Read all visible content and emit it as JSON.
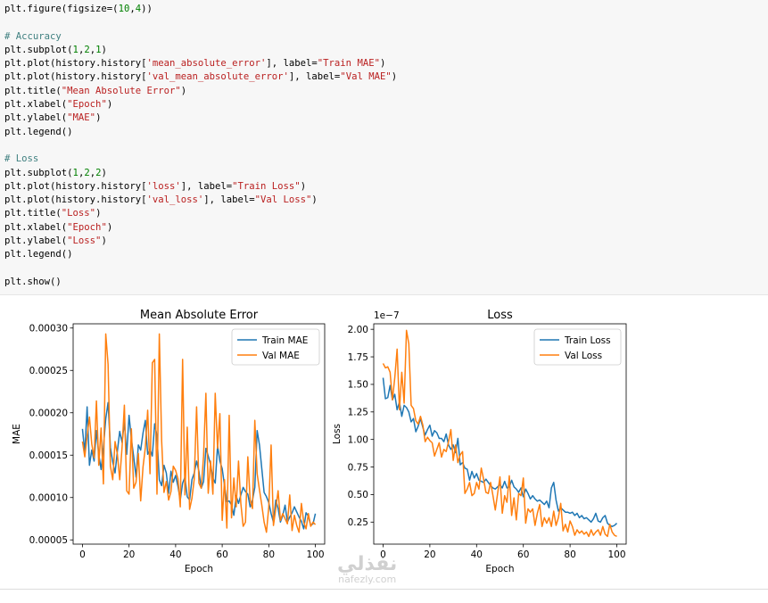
{
  "code_lines": [
    {
      "parts": [
        {
          "t": "plt.figure(figsize=(",
          "c": "kw"
        },
        {
          "t": "10",
          "c": "num"
        },
        {
          "t": ",",
          "c": "kw"
        },
        {
          "t": "4",
          "c": "num"
        },
        {
          "t": "))",
          "c": "kw"
        }
      ]
    },
    {
      "parts": []
    },
    {
      "parts": [
        {
          "t": "# Accuracy",
          "c": "com"
        }
      ]
    },
    {
      "parts": [
        {
          "t": "plt.subplot(",
          "c": "kw"
        },
        {
          "t": "1",
          "c": "num"
        },
        {
          "t": ",",
          "c": "kw"
        },
        {
          "t": "2",
          "c": "num"
        },
        {
          "t": ",",
          "c": "kw"
        },
        {
          "t": "1",
          "c": "num"
        },
        {
          "t": ")",
          "c": "kw"
        }
      ]
    },
    {
      "parts": [
        {
          "t": "plt.plot(history.history[",
          "c": "kw"
        },
        {
          "t": "'mean_absolute_error'",
          "c": "str"
        },
        {
          "t": "], label=",
          "c": "kw"
        },
        {
          "t": "\"Train MAE\"",
          "c": "str"
        },
        {
          "t": ")",
          "c": "kw"
        }
      ]
    },
    {
      "parts": [
        {
          "t": "plt.plot(history.history[",
          "c": "kw"
        },
        {
          "t": "'val_mean_absolute_error'",
          "c": "str"
        },
        {
          "t": "], label=",
          "c": "kw"
        },
        {
          "t": "\"Val MAE\"",
          "c": "str"
        },
        {
          "t": ")",
          "c": "kw"
        }
      ]
    },
    {
      "parts": [
        {
          "t": "plt.title(",
          "c": "kw"
        },
        {
          "t": "\"Mean Absolute Error\"",
          "c": "str"
        },
        {
          "t": ")",
          "c": "kw"
        }
      ]
    },
    {
      "parts": [
        {
          "t": "plt.xlabel(",
          "c": "kw"
        },
        {
          "t": "\"Epoch\"",
          "c": "str"
        },
        {
          "t": ")",
          "c": "kw"
        }
      ]
    },
    {
      "parts": [
        {
          "t": "plt.ylabel(",
          "c": "kw"
        },
        {
          "t": "\"MAE\"",
          "c": "str"
        },
        {
          "t": ")",
          "c": "kw"
        }
      ]
    },
    {
      "parts": [
        {
          "t": "plt.legend()",
          "c": "kw"
        }
      ]
    },
    {
      "parts": []
    },
    {
      "parts": [
        {
          "t": "# Loss",
          "c": "com"
        }
      ]
    },
    {
      "parts": [
        {
          "t": "plt.subplot(",
          "c": "kw"
        },
        {
          "t": "1",
          "c": "num"
        },
        {
          "t": ",",
          "c": "kw"
        },
        {
          "t": "2",
          "c": "num"
        },
        {
          "t": ",",
          "c": "kw"
        },
        {
          "t": "2",
          "c": "num"
        },
        {
          "t": ")",
          "c": "kw"
        }
      ]
    },
    {
      "parts": [
        {
          "t": "plt.plot(history.history[",
          "c": "kw"
        },
        {
          "t": "'loss'",
          "c": "str"
        },
        {
          "t": "], label=",
          "c": "kw"
        },
        {
          "t": "\"Train Loss\"",
          "c": "str"
        },
        {
          "t": ")",
          "c": "kw"
        }
      ]
    },
    {
      "parts": [
        {
          "t": "plt.plot(history.history[",
          "c": "kw"
        },
        {
          "t": "'val_loss'",
          "c": "str"
        },
        {
          "t": "], label=",
          "c": "kw"
        },
        {
          "t": "\"Val Loss\"",
          "c": "str"
        },
        {
          "t": ")",
          "c": "kw"
        }
      ]
    },
    {
      "parts": [
        {
          "t": "plt.title(",
          "c": "kw"
        },
        {
          "t": "\"Loss\"",
          "c": "str"
        },
        {
          "t": ")",
          "c": "kw"
        }
      ]
    },
    {
      "parts": [
        {
          "t": "plt.xlabel(",
          "c": "kw"
        },
        {
          "t": "\"Epoch\"",
          "c": "str"
        },
        {
          "t": ")",
          "c": "kw"
        }
      ]
    },
    {
      "parts": [
        {
          "t": "plt.ylabel(",
          "c": "kw"
        },
        {
          "t": "\"Loss\"",
          "c": "str"
        },
        {
          "t": ")",
          "c": "kw"
        }
      ]
    },
    {
      "parts": [
        {
          "t": "plt.legend()",
          "c": "kw"
        }
      ]
    },
    {
      "parts": []
    },
    {
      "parts": [
        {
          "t": "plt.show()",
          "c": "kw"
        }
      ]
    }
  ],
  "colors": {
    "train": "#1f77b4",
    "val": "#ff7f0e"
  },
  "watermark": {
    "arabic": "نفذلي",
    "latin": "nafezly.com"
  },
  "chart_data": [
    {
      "type": "line",
      "title": "Mean Absolute Error",
      "xlabel": "Epoch",
      "ylabel": "MAE",
      "xlim": [
        -4,
        104
      ],
      "ylim": [
        4.5e-05,
        0.000305
      ],
      "xticks": [
        0,
        20,
        40,
        60,
        80,
        100
      ],
      "yticks": [
        5e-05,
        0.0001,
        0.00015,
        0.0002,
        0.00025,
        0.0003
      ],
      "ytick_labels": [
        "0.00005",
        "0.00010",
        "0.00015",
        "0.00020",
        "0.00025",
        "0.00030"
      ],
      "legend": "top-right",
      "series": [
        {
          "name": "Train MAE",
          "color": "#1f77b4",
          "values": [
            0.000181,
            0.000153,
            0.000207,
            0.000138,
            0.000156,
            0.000143,
            0.000179,
            0.000151,
            0.000133,
            0.000159,
            0.000193,
            0.000212,
            0.000159,
            0.000142,
            0.000129,
            0.000155,
            0.000178,
            0.000165,
            0.000189,
            0.000151,
            0.000197,
            0.000169,
            0.000148,
            0.000124,
            0.000162,
            0.000156,
            0.000176,
            0.000191,
            0.000151,
            0.000157,
            0.000149,
            0.000187,
            0.000173,
            0.000121,
            0.000114,
            0.000138,
            0.000129,
            0.000105,
            0.000131,
            0.000118,
            0.000126,
            0.000113,
            9.7e-05,
            0.000117,
            0.000124,
            0.000101,
            9.7e-05,
            0.000121,
            0.000129,
            0.000143,
            0.000131,
            0.000111,
            0.000119,
            0.000158,
            0.000149,
            0.000139,
            0.000123,
            0.000117,
            0.000161,
            0.000143,
            0.000134,
            0.000114,
            9.5e-05,
            9.6e-05,
            9.1e-05,
            7.9e-05,
            0.000102,
            9.3e-05,
            0.000103,
            0.000112,
            0.000107,
            0.000104,
            8.9e-05,
            9.7e-05,
            0.000112,
            0.000179,
            0.000162,
            0.000134,
            0.000106,
            0.000101,
            9.4e-05,
            8.1e-05,
            7.1e-05,
            9.7e-05,
            8.7e-05,
            7.1e-05,
            7.9e-05,
            9.1e-05,
            7.1e-05,
            7.7e-05,
            8.2e-05,
            8.9e-05,
            8.3e-05,
            7.7e-05,
            7.2e-05,
            6.3e-05,
            8.2e-05,
            7.8e-05,
            6.7e-05,
            6.9e-05,
            8.1e-05
          ]
        },
        {
          "name": "Val MAE",
          "color": "#ff7f0e",
          "values": [
            0.000166,
            0.000148,
            0.000173,
            0.000195,
            0.000163,
            0.000147,
            0.000214,
            0.000138,
            0.000182,
            0.000116,
            0.000293,
            0.000257,
            0.000137,
            0.000121,
            0.000166,
            0.000151,
            0.000121,
            0.000159,
            0.000209,
            0.000108,
            0.000104,
            0.000181,
            0.000111,
            0.000118,
            0.000152,
            9.6e-05,
            0.000136,
            0.000159,
            0.000203,
            0.000128,
            0.000259,
            0.000263,
            0.000104,
            0.000293,
            0.000167,
            0.000106,
            0.000119,
            9.7e-05,
            0.000107,
            0.000137,
            0.000132,
            0.000122,
            8.9e-05,
            0.000263,
            0.000103,
            0.000183,
            8.6e-05,
            9.9e-05,
            0.000122,
            0.000207,
            0.000117,
            0.000111,
            0.000149,
            0.000223,
            0.000105,
            0.000143,
            0.000104,
            0.000223,
            0.000158,
            0.000199,
            7.3e-05,
            0.000121,
            6.4e-05,
            0.000197,
            7.6e-05,
            0.000123,
            8.9e-05,
            0.000143,
            9.3e-05,
            6.6e-05,
            7.1e-05,
            0.000148,
            9.7e-05,
            8.7e-05,
            0.000191,
            0.000128,
            0.000109,
            9.1e-05,
            7.1e-05,
            5.9e-05,
            8.9e-05,
            0.000162,
            6.7e-05,
            8.7e-05,
            0.000108,
            7.3e-05,
            8.1e-05,
            7.5e-05,
            6.9e-05,
            0.000103,
            6.1e-05,
            7.9e-05,
            6.7e-05,
            5.9e-05,
            9.3e-05,
            7.1e-05,
            6.3e-05,
            8.1e-05,
            6.6e-05,
            7.1e-05,
            6.8e-05
          ]
        }
      ]
    },
    {
      "type": "line",
      "title": "Loss",
      "xlabel": "Epoch",
      "ylabel": "Loss",
      "offset_text": "1e−7",
      "xlim": [
        -4,
        104
      ],
      "ylim": [
        0.05,
        2.05
      ],
      "xticks": [
        0,
        20,
        40,
        60,
        80,
        100
      ],
      "yticks": [
        0.25,
        0.5,
        0.75,
        1.0,
        1.25,
        1.5,
        1.75,
        2.0
      ],
      "ytick_labels": [
        "0.25",
        "0.50",
        "0.75",
        "1.00",
        "1.25",
        "1.50",
        "1.75",
        "2.00"
      ],
      "legend": "top-right",
      "series": [
        {
          "name": "Train Loss",
          "color": "#1f77b4",
          "values": [
            1.56,
            1.37,
            1.38,
            1.49,
            1.36,
            1.41,
            1.27,
            1.34,
            1.21,
            1.31,
            1.29,
            1.25,
            1.16,
            1.19,
            1.07,
            1.12,
            1.19,
            1.11,
            1.04,
            1.09,
            1.13,
            1.03,
            1.08,
            1.06,
            1.01,
            1.01,
            0.98,
            1.05,
            0.95,
            0.91,
            0.95,
            0.88,
            1.01,
            0.77,
            0.79,
            0.74,
            0.73,
            0.63,
            0.71,
            0.65,
            0.69,
            0.63,
            0.62,
            0.61,
            0.64,
            0.61,
            0.58,
            0.56,
            0.55,
            0.57,
            0.59,
            0.56,
            0.62,
            0.56,
            0.57,
            0.63,
            0.57,
            0.55,
            0.52,
            0.56,
            0.48,
            0.55,
            0.51,
            0.46,
            0.49,
            0.46,
            0.44,
            0.45,
            0.43,
            0.41,
            0.44,
            0.38,
            0.56,
            0.61,
            0.45,
            0.35,
            0.38,
            0.36,
            0.34,
            0.34,
            0.33,
            0.34,
            0.31,
            0.33,
            0.29,
            0.31,
            0.28,
            0.29,
            0.27,
            0.25,
            0.28,
            0.33,
            0.26,
            0.25,
            0.29,
            0.31,
            0.24,
            0.22,
            0.21,
            0.22,
            0.24
          ]
        },
        {
          "name": "Val Loss",
          "color": "#ff7f0e",
          "values": [
            1.69,
            1.65,
            1.66,
            1.61,
            1.36,
            1.56,
            1.82,
            1.27,
            1.61,
            1.33,
            1.99,
            1.87,
            1.31,
            1.28,
            1.17,
            1.14,
            1.21,
            1.13,
            0.98,
            1.02,
            0.99,
            0.97,
            0.85,
            0.91,
            0.97,
            0.84,
            0.91,
            0.89,
            0.98,
            1.09,
            0.81,
            0.95,
            0.79,
            0.86,
            0.89,
            0.51,
            0.55,
            0.61,
            0.49,
            0.51,
            0.61,
            0.55,
            0.74,
            0.64,
            0.52,
            0.51,
            0.61,
            0.49,
            0.36,
            0.51,
            0.66,
            0.33,
            0.49,
            0.43,
            0.67,
            0.31,
            0.47,
            0.27,
            0.51,
            0.49,
            0.65,
            0.24,
            0.37,
            0.34,
            0.37,
            0.22,
            0.33,
            0.41,
            0.21,
            0.29,
            0.24,
            0.29,
            0.21,
            0.35,
            0.22,
            0.29,
            0.42,
            0.17,
            0.23,
            0.16,
            0.26,
            0.21,
            0.13,
            0.18,
            0.15,
            0.17,
            0.14,
            0.16,
            0.12,
            0.18,
            0.13,
            0.16,
            0.18,
            0.13,
            0.21,
            0.14,
            0.12,
            0.23,
            0.16,
            0.13,
            0.12
          ]
        }
      ]
    }
  ]
}
